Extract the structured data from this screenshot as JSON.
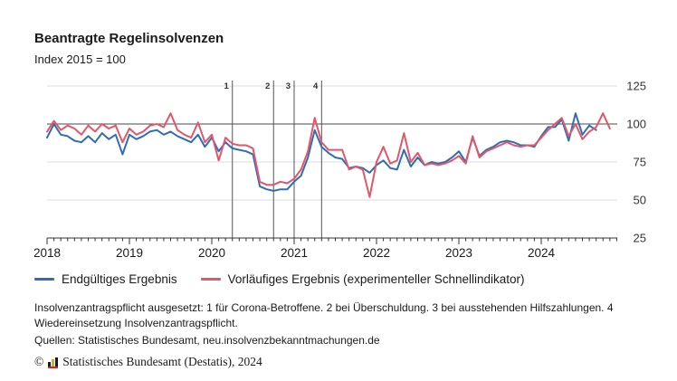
{
  "header": {
    "title": "Beantragte Regelinsolvenzen",
    "subtitle": "Index 2015 = 100"
  },
  "chart_data": {
    "type": "line",
    "title": "Beantragte Regelinsolvenzen",
    "subtitle": "Index 2015 = 100",
    "x_unit": "month",
    "x_start": "2018-01",
    "year_labels": [
      "2018",
      "2019",
      "2020",
      "2021",
      "2022",
      "2023",
      "2024"
    ],
    "y_ticks": [
      25,
      50,
      75,
      100,
      125
    ],
    "ylim": [
      25,
      125
    ],
    "baseline_value": 100,
    "grid": true,
    "legend_position": "bottom",
    "series": [
      {
        "name": "Endgültiges Ergebnis",
        "color": "#2f6eb5",
        "values": [
          91,
          100,
          93,
          92,
          89,
          88,
          92,
          88,
          94,
          90,
          93,
          80,
          93,
          90,
          92,
          95,
          96,
          93,
          95,
          92,
          90,
          88,
          93,
          85,
          91,
          82,
          88,
          84,
          83,
          82,
          80,
          59,
          57,
          56,
          57,
          57,
          62,
          66,
          78,
          96,
          85,
          81,
          78,
          77,
          71,
          72,
          71,
          68,
          73,
          76,
          71,
          70,
          83,
          72,
          78,
          73,
          75,
          74,
          75,
          78,
          82,
          75,
          91,
          79,
          83,
          85,
          88,
          89,
          88,
          86,
          86,
          85,
          92,
          98,
          98,
          103,
          89,
          107,
          93,
          99,
          96
        ]
      },
      {
        "name": "Vorläufiges Ergebnis (experimenteller Schnellindikator)",
        "color": "#e4566a",
        "values": [
          95,
          102,
          96,
          99,
          97,
          93,
          99,
          95,
          100,
          97,
          99,
          88,
          97,
          93,
          95,
          99,
          100,
          98,
          107,
          96,
          93,
          91,
          101,
          88,
          93,
          76,
          91,
          87,
          86,
          86,
          84,
          62,
          60,
          60,
          62,
          61,
          64,
          70,
          82,
          104,
          88,
          83,
          83,
          83,
          70,
          72,
          70,
          52,
          75,
          85,
          74,
          76,
          94,
          75,
          81,
          73,
          74,
          73,
          74,
          76,
          79,
          74,
          92,
          78,
          82,
          84,
          86,
          88,
          86,
          85,
          86,
          86,
          91,
          96,
          100,
          104,
          92,
          100,
          90,
          95,
          98,
          107,
          97
        ]
      }
    ],
    "ref_lines": [
      {
        "label": "1",
        "month_index": 27
      },
      {
        "label": "2",
        "month_index": 33
      },
      {
        "label": "3",
        "month_index": 36
      },
      {
        "label": "4",
        "month_index": 40
      }
    ]
  },
  "notes": {
    "note1": "Insolvenzantragspflicht ausgesetzt: 1 für Corona-Betroffene. 2 bei Überschuldung. 3 bei ausstehenden Hilfszahlungen. 4 Wiedereinsetzung Insolvenzantragspflicht.",
    "source": "Quellen: Statistisches Bundesamt, neu.insolvenzbekanntmachungen.de"
  },
  "copyright": {
    "prefix": "©",
    "text": "Statistisches Bundesamt (Destatis), 2024"
  }
}
